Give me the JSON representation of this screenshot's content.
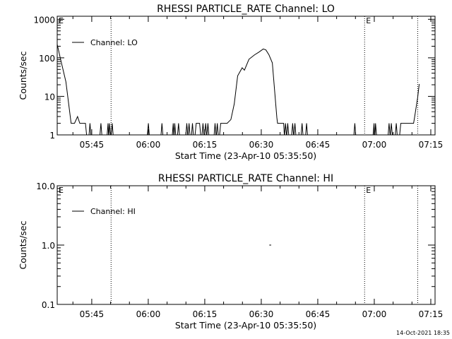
{
  "chart_data": [
    {
      "type": "line",
      "title": "RHESSI PARTICLE_RATE Channel: LO",
      "xlabel": "Start Time (23-Apr-10 05:35:50)",
      "ylabel": "Counts/sec",
      "x_units": "minutes since 05:35:50",
      "xlim": [
        0,
        100.3
      ],
      "yscale": "log",
      "ylim": [
        1,
        1200
      ],
      "yticks": [
        1,
        10,
        100,
        1000
      ],
      "ytick_labels": [
        "1",
        "10",
        "100",
        "1000"
      ],
      "xticks": [
        9.17,
        24.17,
        39.17,
        54.17,
        69.17,
        84.17,
        99.17
      ],
      "xtick_labels": [
        "05:45",
        "06:00",
        "06:15",
        "06:30",
        "06:45",
        "07:00",
        "07:15"
      ],
      "legend": {
        "label": "Channel: LO",
        "placement": "top-left"
      },
      "markers": [
        {
          "t": 14.3,
          "label": ""
        },
        {
          "t": 81.6,
          "label": "E"
        },
        {
          "t": 95.7,
          "label": ""
        }
      ],
      "corner_label": "E",
      "series": [
        {
          "name": "Channel: LO",
          "points": [
            [
              0,
              225
            ],
            [
              0.8,
              100
            ],
            [
              2.3,
              24
            ],
            [
              3.7,
              2
            ],
            [
              4.6,
              2
            ],
            [
              5.4,
              3
            ],
            [
              6,
              2
            ],
            [
              7.5,
              2
            ],
            [
              7.8,
              1
            ],
            [
              36.6,
              1
            ],
            [
              36.9,
              2
            ],
            [
              37.8,
              2
            ],
            [
              38.1,
              1
            ],
            [
              43.1,
              1
            ],
            [
              43.4,
              2
            ],
            [
              45.1,
              2
            ],
            [
              46.1,
              2.5
            ],
            [
              47,
              6.4
            ],
            [
              47.9,
              34
            ],
            [
              49.1,
              55
            ],
            [
              49.7,
              48
            ],
            [
              50.9,
              92
            ],
            [
              52.4,
              120
            ],
            [
              53.5,
              140
            ],
            [
              54.7,
              170
            ],
            [
              55.4,
              160
            ],
            [
              56.2,
              120
            ],
            [
              57.1,
              74
            ],
            [
              58.3,
              2.8
            ],
            [
              58.5,
              2
            ],
            [
              60.1,
              2
            ],
            [
              60.3,
              1
            ],
            [
              90.9,
              1
            ],
            [
              91.2,
              2
            ],
            [
              94.6,
              2
            ],
            [
              94.9,
              3
            ],
            [
              95.7,
              9.7
            ],
            [
              96.1,
              21
            ]
          ],
          "spikes_to_2": [
            8.7,
            11.6,
            13.5,
            13.9,
            14.6,
            24.2,
            27.8,
            30.8,
            31.2,
            32.2,
            34.4,
            35,
            35.9,
            38.7,
            39.4,
            40,
            41.9,
            42.5,
            60.6,
            61.2,
            62.5,
            63.1,
            65,
            66.2,
            79,
            84.1,
            84.5,
            88.1,
            88.7,
            90
          ]
        }
      ]
    },
    {
      "type": "line",
      "title": "RHESSI PARTICLE_RATE Channel: HI",
      "xlabel": "Start Time (23-Apr-10 05:35:50)",
      "ylabel": "Counts/sec",
      "x_units": "minutes since 05:35:50",
      "xlim": [
        0,
        100.3
      ],
      "yscale": "log",
      "ylim": [
        0.1,
        10
      ],
      "yticks": [
        0.1,
        1,
        10
      ],
      "ytick_labels": [
        "0.1",
        "1.0",
        "10.0"
      ],
      "xticks": [
        9.17,
        24.17,
        39.17,
        54.17,
        69.17,
        84.17,
        99.17
      ],
      "xtick_labels": [
        "05:45",
        "06:00",
        "06:15",
        "06:30",
        "06:45",
        "07:00",
        "07:15"
      ],
      "legend": {
        "label": "Channel: HI",
        "placement": "top-left"
      },
      "markers": [
        {
          "t": 14.3,
          "label": ""
        },
        {
          "t": 81.6,
          "label": "E"
        },
        {
          "t": 95.7,
          "label": ""
        }
      ],
      "corner_label": "E",
      "series": [
        {
          "name": "Channel: HI",
          "points": [
            [
              56.3,
              1
            ],
            [
              56.8,
              1
            ]
          ],
          "spikes_to_2": []
        }
      ]
    }
  ],
  "footer": {
    "timestamp": "14-Oct-2021 18:35"
  }
}
